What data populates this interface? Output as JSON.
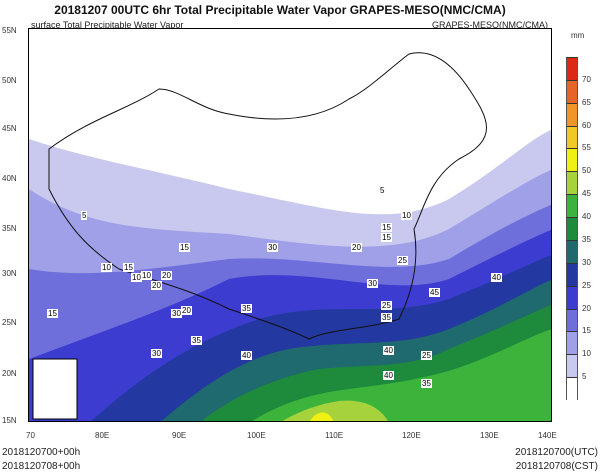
{
  "title": "20181207 00UTC 6hr Total Precipitable Water Vapor GRAPES-MESO(NMC/CMA)",
  "subtitle_left": "surface Total Precipitable Water Vapor",
  "subtitle_right": "GRAPES-MESO(NMC/CMA)",
  "lat_labels": [
    "55N",
    "50N",
    "45N",
    "40N",
    "35N",
    "30N",
    "25N",
    "20N",
    "15N"
  ],
  "lon_labels": [
    "70",
    "80E",
    "90E",
    "100E",
    "110E",
    "120E",
    "130E",
    "140E"
  ],
  "colorbar": {
    "unit": "mm",
    "levels": [
      "5",
      "10",
      "15",
      "20",
      "25",
      "30",
      "35",
      "40",
      "45",
      "50",
      "55",
      "60",
      "65",
      "70"
    ],
    "colors": [
      "#ffffff",
      "#c9c9f0",
      "#a0a0e8",
      "#6f6fdc",
      "#3c3cd0",
      "#2338a0",
      "#1f6a6e",
      "#1e8a3c",
      "#3cb43c",
      "#a6d23c",
      "#f0f014",
      "#f0c828",
      "#f09628",
      "#e66428",
      "#dc2814"
    ]
  },
  "contour_labels": [
    "5",
    "5",
    "10",
    "15",
    "10",
    "15",
    "10",
    "20",
    "15",
    "30",
    "20",
    "15",
    "10",
    "25",
    "30",
    "20",
    "25",
    "40",
    "45",
    "35",
    "40",
    "40",
    "35",
    "30",
    "40",
    "35",
    "30",
    "25",
    "35",
    "20",
    "15"
  ],
  "footer": {
    "left1": "2018120700+00h",
    "left2": "2018120708+00h",
    "right1": "2018120700(UTC)",
    "right2": "2018120708(CST)"
  }
}
